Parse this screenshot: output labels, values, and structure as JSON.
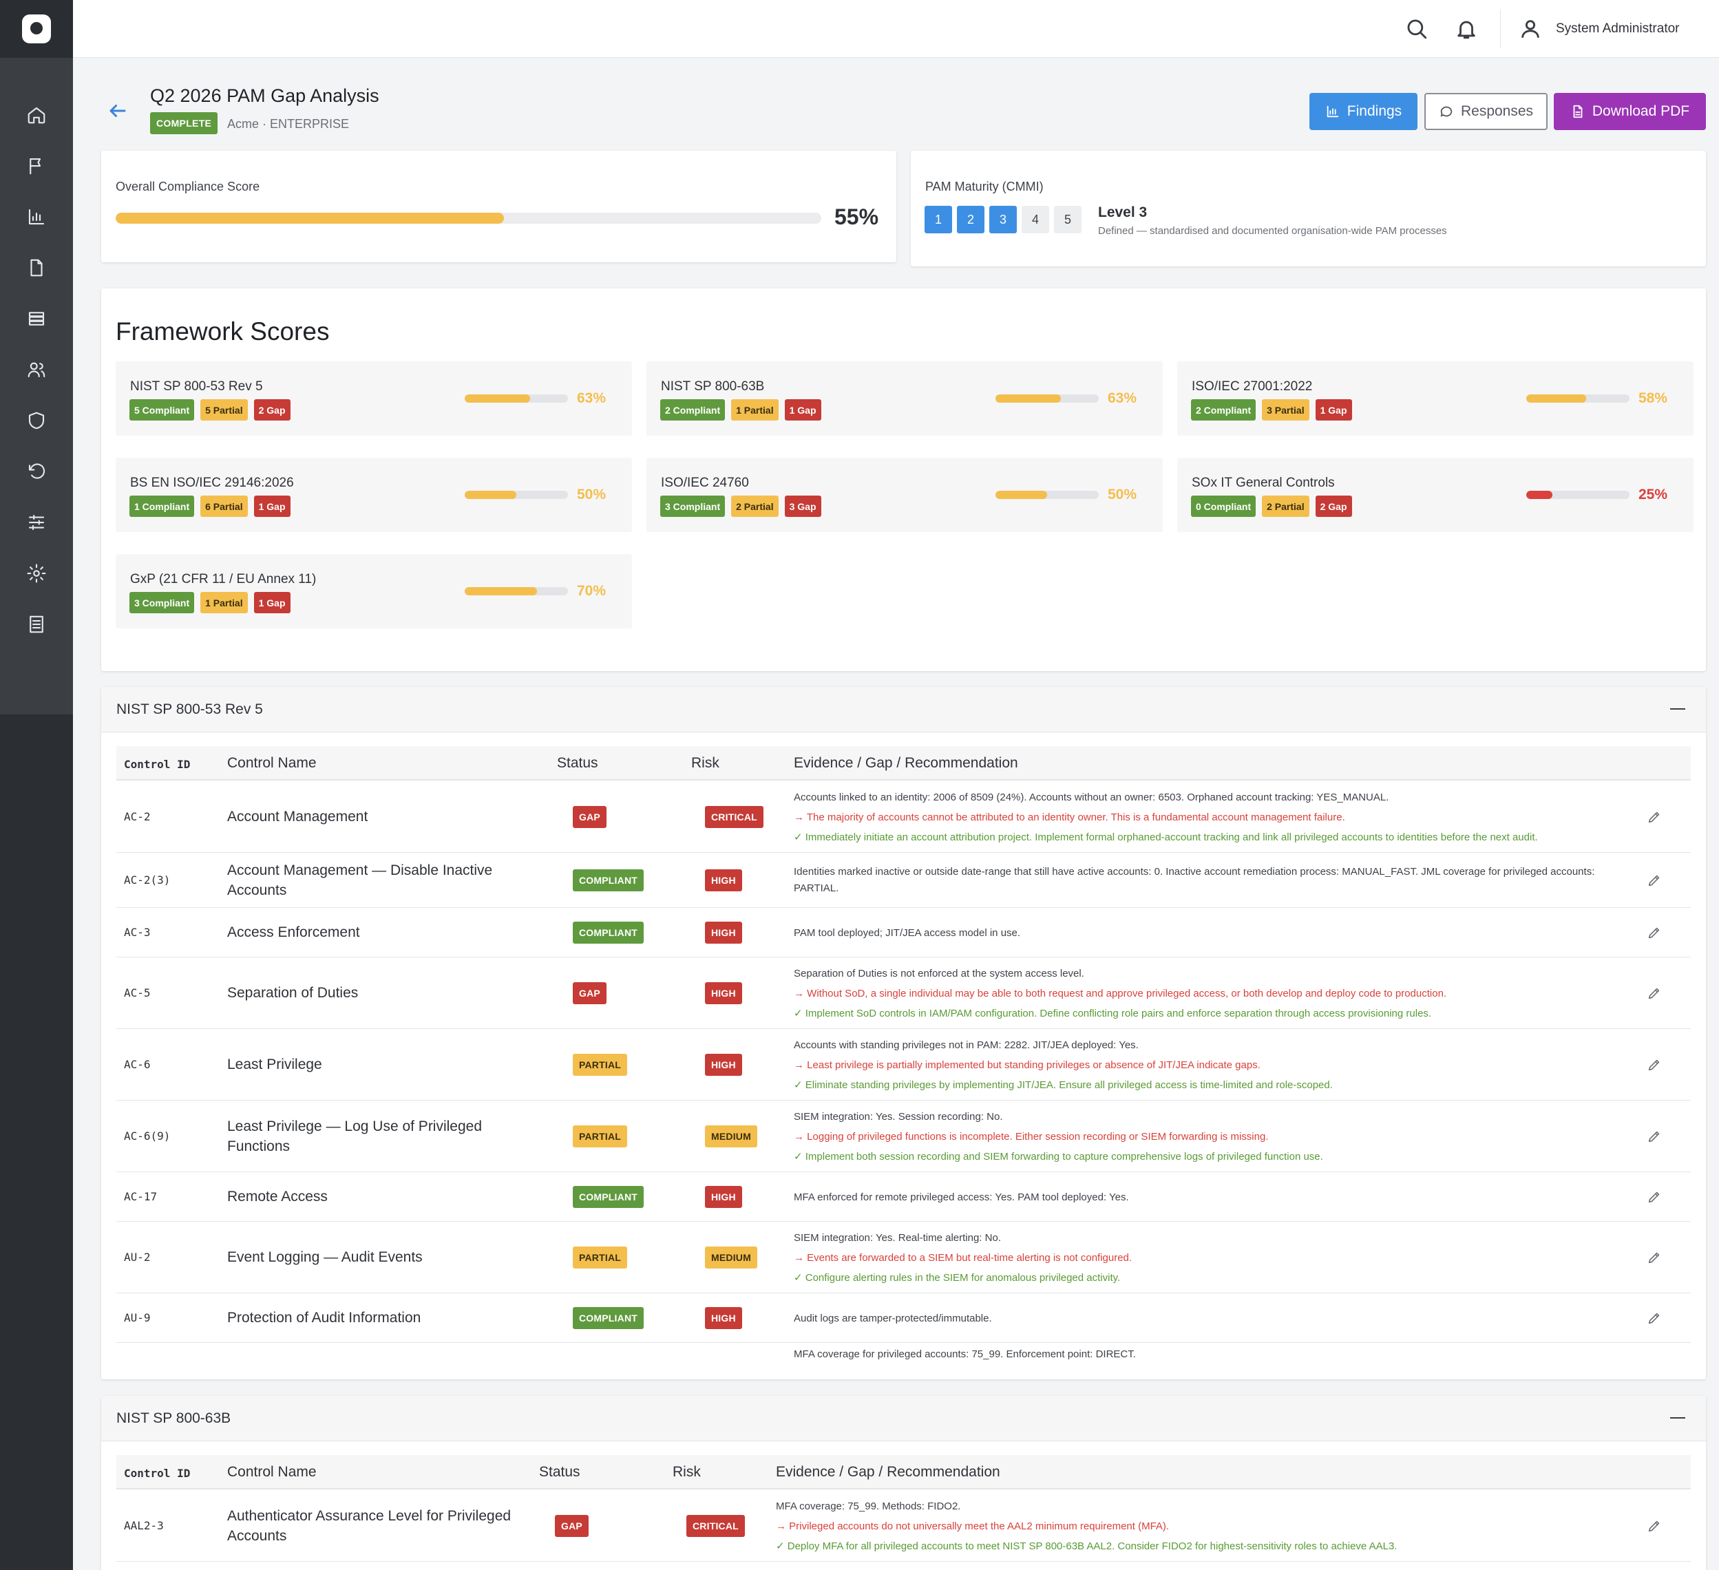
{
  "header": {
    "user_name": "System Administrator"
  },
  "page": {
    "title": "Q2 2026 PAM Gap Analysis",
    "status": "COMPLETE",
    "subtitle": "Acme · ENTERPRISE",
    "actions": {
      "findings": "Findings",
      "responses": "Responses",
      "download": "Download PDF"
    }
  },
  "compliance": {
    "label": "Overall Compliance Score",
    "value": 55,
    "display": "55%"
  },
  "maturity": {
    "label": "PAM Maturity (CMMI)",
    "level_number": 3,
    "levels": [
      "1",
      "2",
      "3",
      "4",
      "5"
    ],
    "level_label": "Level 3",
    "description": "Defined — standardised and documented organisation-wide PAM processes"
  },
  "frameworks": {
    "heading": "Framework Scores",
    "items": [
      {
        "name": "NIST SP 800-53 Rev 5",
        "compliant": "5 Compliant",
        "partial": "5 Partial",
        "gap": "2 Gap",
        "score": 63,
        "display": "63%"
      },
      {
        "name": "NIST SP 800-63B",
        "compliant": "2 Compliant",
        "partial": "1 Partial",
        "gap": "1 Gap",
        "score": 63,
        "display": "63%"
      },
      {
        "name": "ISO/IEC 27001:2022",
        "compliant": "2 Compliant",
        "partial": "3 Partial",
        "gap": "1 Gap",
        "score": 58,
        "display": "58%"
      },
      {
        "name": "BS EN ISO/IEC 29146:2026",
        "compliant": "1 Compliant",
        "partial": "6 Partial",
        "gap": "1 Gap",
        "score": 50,
        "display": "50%"
      },
      {
        "name": "ISO/IEC 24760",
        "compliant": "3 Compliant",
        "partial": "2 Partial",
        "gap": "3 Gap",
        "score": 50,
        "display": "50%"
      },
      {
        "name": "SOx IT General Controls",
        "compliant": "0 Compliant",
        "partial": "2 Partial",
        "gap": "2 Gap",
        "score": 25,
        "display": "25%"
      },
      {
        "name": "GxP (21 CFR 11 / EU Annex 11)",
        "compliant": "3 Compliant",
        "partial": "1 Partial",
        "gap": "1 Gap",
        "score": 70,
        "display": "70%"
      }
    ],
    "colors": {
      "warn": "#f4be4d",
      "bad": "#d9413b"
    }
  },
  "table_headers": {
    "control_id": "Control ID",
    "control_name": "Control Name",
    "status": "Status",
    "risk": "Risk",
    "evidence": "Evidence / Gap / Recommendation"
  },
  "section1": {
    "title": "NIST SP 800-53 Rev 5",
    "rows": [
      {
        "id": "AC-2",
        "name": "Account Management",
        "status": "GAP",
        "risk": "CRITICAL",
        "evidence": "Accounts linked to an identity: 2006 of 8509 (24%). Accounts without an owner: 6503. Orphaned account tracking: YES_MANUAL.",
        "gap": "→ The majority of accounts cannot be attributed to an identity owner. This is a fundamental account management failure.",
        "rec": "✓ Immediately initiate an account attribution project. Implement formal orphaned-account tracking and link all privileged accounts to identities before the next audit."
      },
      {
        "id": "AC-2(3)",
        "name": "Account Management — Disable Inactive Accounts",
        "status": "COMPLIANT",
        "risk": "HIGH",
        "evidence": "Identities marked inactive or outside date-range that still have active accounts: 0. Inactive account remediation process: MANUAL_FAST. JML coverage for privileged accounts: PARTIAL."
      },
      {
        "id": "AC-3",
        "name": "Access Enforcement",
        "status": "COMPLIANT",
        "risk": "HIGH",
        "evidence": "PAM tool deployed; JIT/JEA access model in use."
      },
      {
        "id": "AC-5",
        "name": "Separation of Duties",
        "status": "GAP",
        "risk": "HIGH",
        "evidence": "Separation of Duties is not enforced at the system access level.",
        "gap": "→ Without SoD, a single individual may be able to both request and approve privileged access, or both develop and deploy code to production.",
        "rec": "✓ Implement SoD controls in IAM/PAM configuration. Define conflicting role pairs and enforce separation through access provisioning rules."
      },
      {
        "id": "AC-6",
        "name": "Least Privilege",
        "status": "PARTIAL",
        "risk": "HIGH",
        "evidence": "Accounts with standing privileges not in PAM: 2282. JIT/JEA deployed: Yes.",
        "gap": "→ Least privilege is partially implemented but standing privileges or absence of JIT/JEA indicate gaps.",
        "rec": "✓ Eliminate standing privileges by implementing JIT/JEA. Ensure all privileged access is time-limited and role-scoped."
      },
      {
        "id": "AC-6(9)",
        "name": "Least Privilege — Log Use of Privileged Functions",
        "status": "PARTIAL",
        "risk": "MEDIUM",
        "evidence": "SIEM integration: Yes. Session recording: No.",
        "gap": "→ Logging of privileged functions is incomplete. Either session recording or SIEM forwarding is missing.",
        "rec": "✓ Implement both session recording and SIEM forwarding to capture comprehensive logs of privileged function use."
      },
      {
        "id": "AC-17",
        "name": "Remote Access",
        "status": "COMPLIANT",
        "risk": "HIGH",
        "evidence": "MFA enforced for remote privileged access: Yes. PAM tool deployed: Yes."
      },
      {
        "id": "AU-2",
        "name": "Event Logging — Audit Events",
        "status": "PARTIAL",
        "risk": "MEDIUM",
        "evidence": "SIEM integration: Yes. Real-time alerting: No.",
        "gap": "→ Events are forwarded to a SIEM but real-time alerting is not configured.",
        "rec": "✓ Configure alerting rules in the SIEM for anomalous privileged activity."
      },
      {
        "id": "AU-9",
        "name": "Protection of Audit Information",
        "status": "COMPLIANT",
        "risk": "HIGH",
        "evidence": "Audit logs are tamper-protected/immutable."
      }
    ],
    "trailing_evidence": "MFA coverage for privileged accounts: 75_99. Enforcement point: DIRECT."
  },
  "section2": {
    "title": "NIST SP 800-63B",
    "rows": [
      {
        "id": "AAL2-3",
        "name": "Authenticator Assurance Level for Privileged Accounts",
        "status": "GAP",
        "risk": "CRITICAL",
        "evidence": "MFA coverage: 75_99. Methods: FIDO2.",
        "gap": "→ Privileged accounts do not universally meet the AAL2 minimum requirement (MFA).",
        "rec": "✓ Deploy MFA for all privileged accounts to meet NIST SP 800-63B AAL2. Consider FIDO2 for highest-sensitivity roles to achieve AAL3."
      }
    ]
  }
}
